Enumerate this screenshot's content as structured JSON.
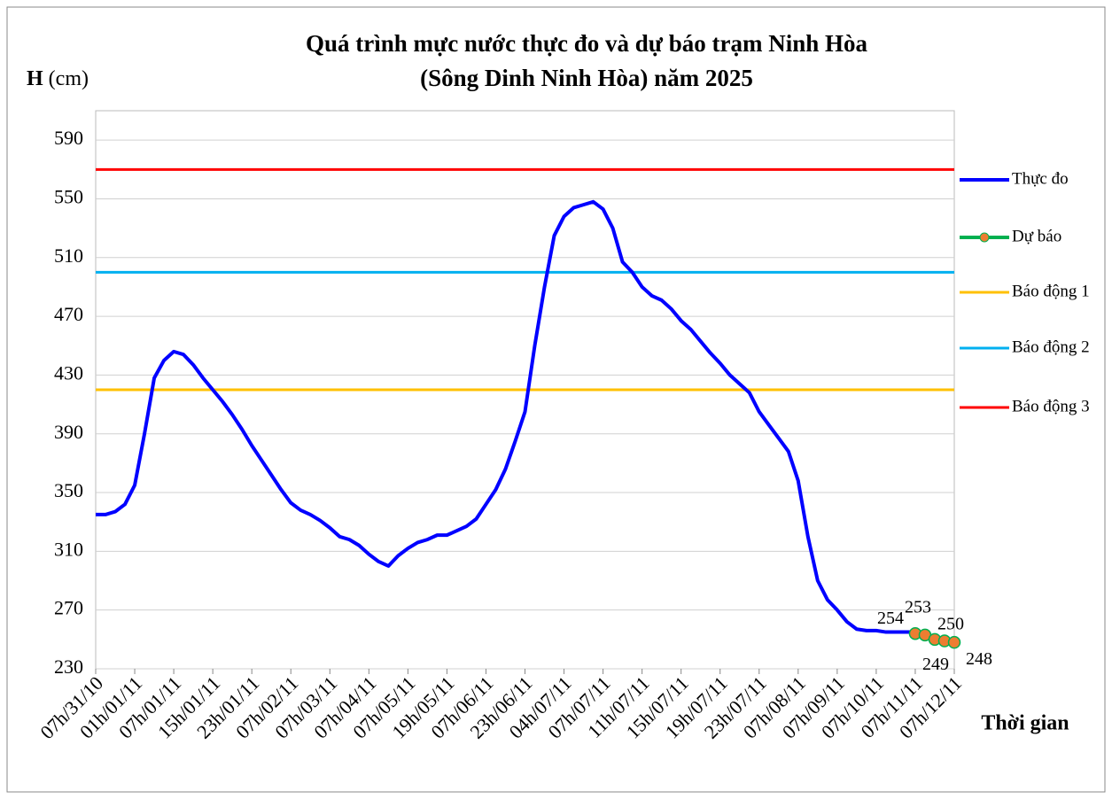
{
  "chart_data": {
    "type": "line",
    "title_lines": [
      "Quá trình mực nước thực đo và dự báo trạm Ninh Hòa",
      "(Sông Dinh Ninh Hòa) năm 2025"
    ],
    "y_label_symbol": "H",
    "y_label_unit": "(cm)",
    "x_label": "Thời gian",
    "categories": [
      "07h/31/10",
      null,
      null,
      null,
      "01h/01/11",
      null,
      null,
      null,
      "07h/01/11",
      null,
      null,
      null,
      "15h/01/11",
      null,
      null,
      null,
      "23h/01/11",
      null,
      null,
      null,
      "07h/02/11",
      null,
      null,
      null,
      "07h/03/11",
      null,
      null,
      null,
      "07h/04/11",
      null,
      null,
      null,
      "07h/05/11",
      null,
      null,
      null,
      "19h/05/11",
      null,
      null,
      null,
      "07h/06/11",
      null,
      null,
      null,
      "23h/06/11",
      null,
      null,
      null,
      "04h/07/11",
      null,
      null,
      null,
      "07h/07/11",
      null,
      null,
      null,
      "11h/07/11",
      null,
      null,
      null,
      "15h/07/11",
      null,
      null,
      null,
      "19h/07/11",
      null,
      null,
      null,
      "23h/07/11",
      null,
      null,
      null,
      "07h/08/11",
      null,
      null,
      null,
      "07h/09/11",
      null,
      null,
      null,
      "07h/10/11",
      null,
      null,
      null,
      "07h/11/11",
      null,
      null,
      null,
      "07h/12/11"
    ],
    "series": [
      {
        "name": "Thực đo",
        "color": "#0000ff",
        "values": [
          335,
          335,
          337,
          342,
          355,
          390,
          428,
          440,
          446,
          444,
          437,
          428,
          420,
          412,
          403,
          393,
          382,
          372,
          362,
          352,
          343,
          338,
          335,
          331,
          326,
          320,
          318,
          314,
          308,
          303,
          300,
          307,
          312,
          316,
          318,
          321,
          321,
          324,
          327,
          332,
          342,
          352,
          366,
          385,
          405,
          450,
          490,
          525,
          538,
          544,
          546,
          548,
          543,
          530,
          507,
          500,
          490,
          484,
          481,
          475,
          467,
          461,
          453,
          445,
          438,
          430,
          424,
          418,
          405,
          396,
          387,
          378,
          358,
          320,
          290,
          277,
          270,
          262,
          257,
          256,
          256,
          255,
          255,
          255,
          255,
          null,
          null,
          null,
          null
        ]
      },
      {
        "name": "Dự báo",
        "color": "#00b050",
        "marker_color": "#ed7d31",
        "values": [
          null,
          null,
          null,
          null,
          null,
          null,
          null,
          null,
          null,
          null,
          null,
          null,
          null,
          null,
          null,
          null,
          null,
          null,
          null,
          null,
          null,
          null,
          null,
          null,
          null,
          null,
          null,
          null,
          null,
          null,
          null,
          null,
          null,
          null,
          null,
          null,
          null,
          null,
          null,
          null,
          null,
          null,
          null,
          null,
          null,
          null,
          null,
          null,
          null,
          null,
          null,
          null,
          null,
          null,
          null,
          null,
          null,
          null,
          null,
          null,
          null,
          null,
          null,
          null,
          null,
          null,
          null,
          null,
          null,
          null,
          null,
          null,
          null,
          null,
          null,
          null,
          null,
          null,
          null,
          null,
          null,
          null,
          null,
          null,
          254,
          253,
          250,
          249,
          248
        ]
      }
    ],
    "levels": [
      {
        "name": "Báo động 1",
        "color": "#ffc000",
        "value": 420
      },
      {
        "name": "Báo động 2",
        "color": "#00b0f0",
        "value": 500
      },
      {
        "name": "Báo động 3",
        "color": "#ff0000",
        "value": 570
      }
    ],
    "ylim": [
      230,
      610
    ],
    "yticks": [
      230,
      270,
      310,
      350,
      390,
      430,
      470,
      510,
      550,
      590
    ],
    "grid": true,
    "legend": "right"
  }
}
